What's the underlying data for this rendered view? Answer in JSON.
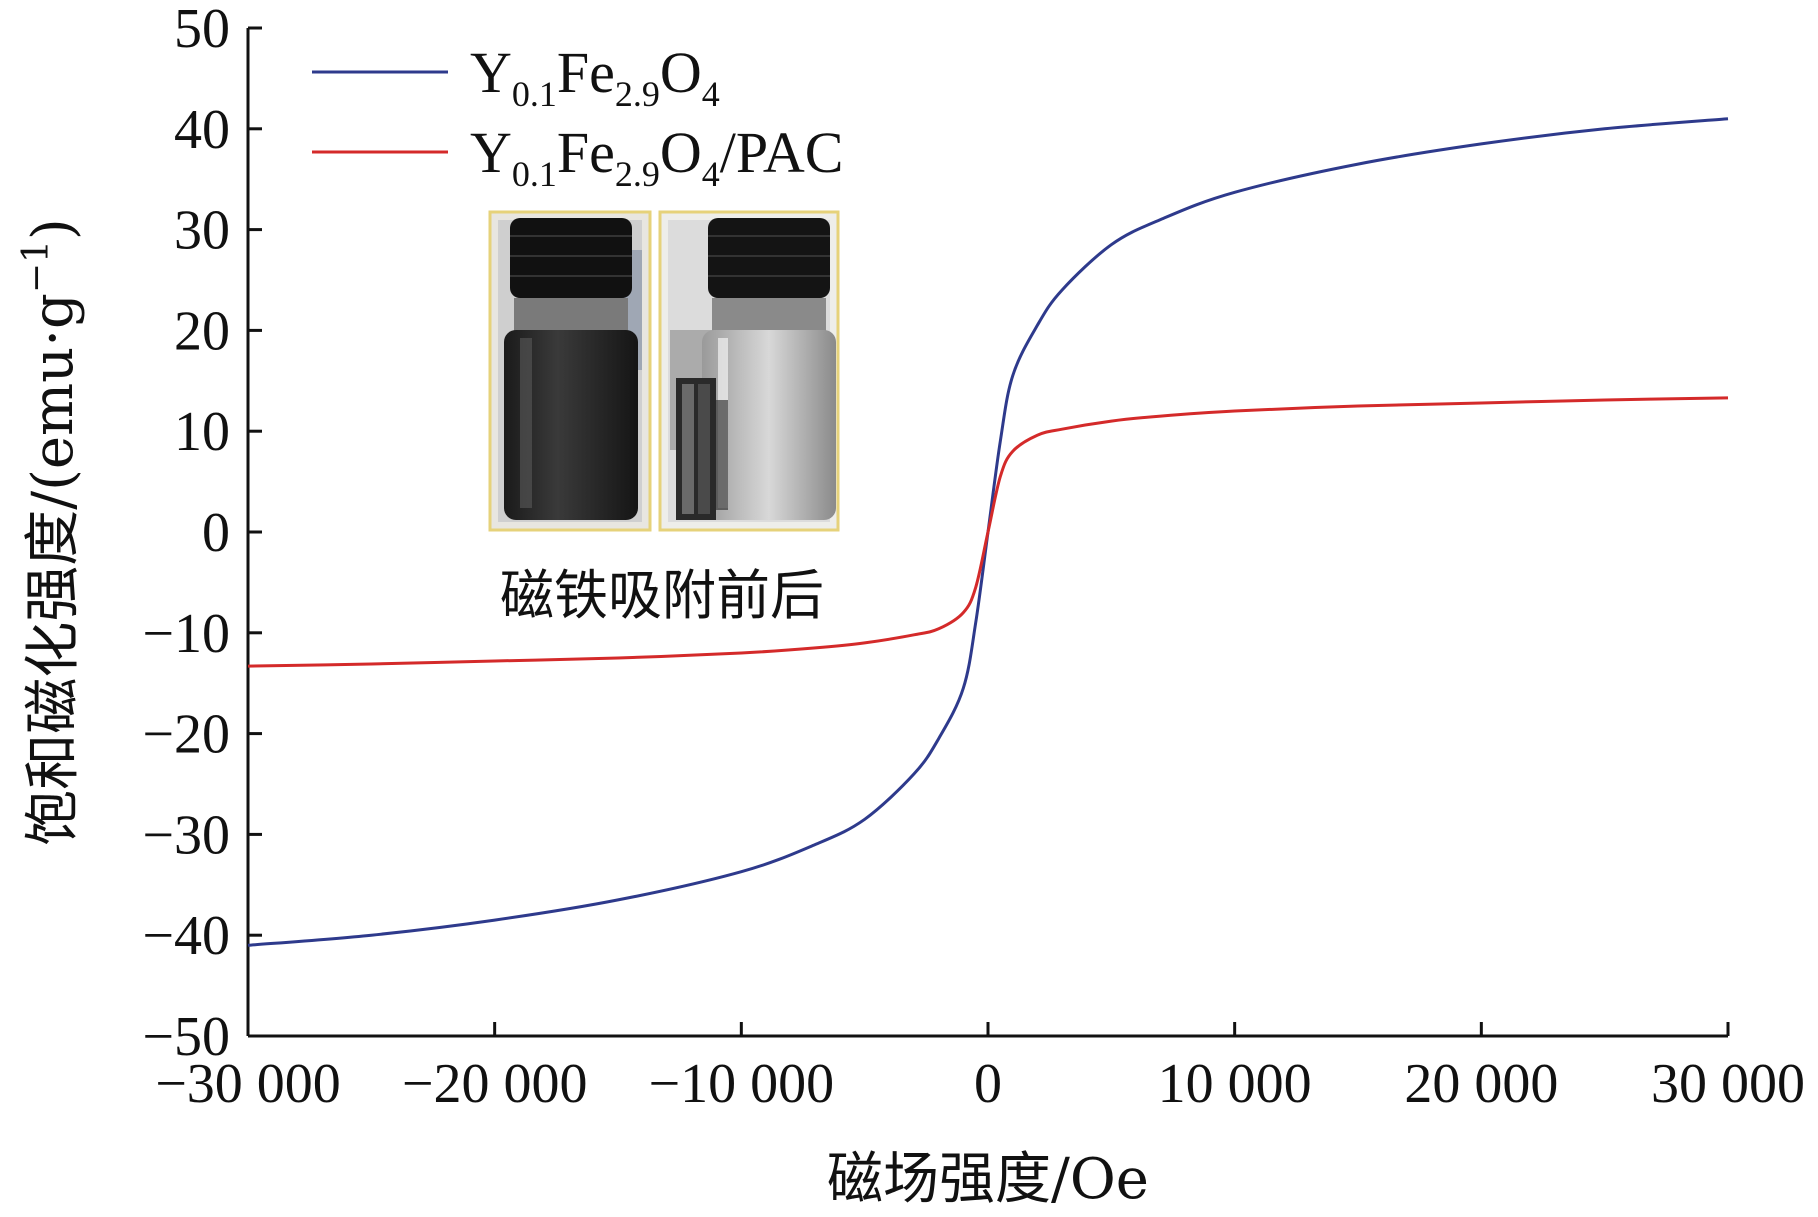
{
  "chart_data": {
    "type": "line",
    "xlabel": "磁场强度/Oe",
    "ylabel": "饱和磁化强度/(emu·g",
    "ylabel_sup": "−1",
    "ylabel_close": ")",
    "xlim": [
      -30000,
      30000
    ],
    "ylim": [
      -50,
      50
    ],
    "x_ticks": [
      -30000,
      -20000,
      -10000,
      0,
      10000,
      20000,
      30000
    ],
    "x_tick_labels": [
      "−30 000",
      "−20 000",
      "−10 000",
      "0",
      "10 000",
      "20 000",
      "30 000"
    ],
    "y_ticks": [
      50,
      40,
      30,
      20,
      10,
      0,
      -10,
      -20,
      -30,
      -40,
      -50
    ],
    "y_tick_labels": [
      "50",
      "40",
      "30",
      "20",
      "10",
      "0",
      "−10",
      "−20",
      "−30",
      "−40",
      "−50"
    ],
    "grid": false,
    "legend_position": "top-left",
    "series": [
      {
        "name": "Y0.1Fe2.9O4",
        "legend": {
          "p1": "Y",
          "s1": "0.1",
          "p2": "Fe",
          "s2": "2.9",
          "p3": "O",
          "s3": "4",
          "p4": ""
        },
        "color": "#2e3a8c",
        "x": [
          -30000,
          -25000,
          -20000,
          -15000,
          -10000,
          -7000,
          -5000,
          -3000,
          -2000,
          -1000,
          -500,
          0,
          500,
          1000,
          2000,
          3000,
          5000,
          7000,
          10000,
          15000,
          20000,
          25000,
          30000
        ],
        "y": [
          -41,
          -40,
          -38.5,
          -36.5,
          -33.7,
          -31,
          -28.5,
          -24,
          -20.5,
          -15.5,
          -9,
          0,
          9,
          15.5,
          20.5,
          24,
          28.5,
          31,
          33.7,
          36.5,
          38.5,
          40,
          41
        ]
      },
      {
        "name": "Y0.1Fe2.9O4/PAC",
        "legend": {
          "p1": "Y",
          "s1": "0.1",
          "p2": "Fe",
          "s2": "2.9",
          "p3": "O",
          "s3": "4",
          "p4": "/PAC"
        },
        "color": "#d42a2a",
        "x": [
          -30000,
          -25000,
          -20000,
          -15000,
          -10000,
          -7000,
          -5000,
          -3000,
          -2000,
          -1000,
          -500,
          0,
          500,
          1000,
          2000,
          3000,
          5000,
          7000,
          10000,
          15000,
          20000,
          25000,
          30000
        ],
        "y": [
          -13.3,
          -13.1,
          -12.8,
          -12.5,
          -12,
          -11.5,
          -11,
          -10.2,
          -9.6,
          -8,
          -5.5,
          0,
          5.5,
          8,
          9.6,
          10.2,
          11,
          11.5,
          12,
          12.5,
          12.8,
          13.1,
          13.3
        ]
      }
    ]
  },
  "inset": {
    "caption": "磁铁吸附前后"
  }
}
